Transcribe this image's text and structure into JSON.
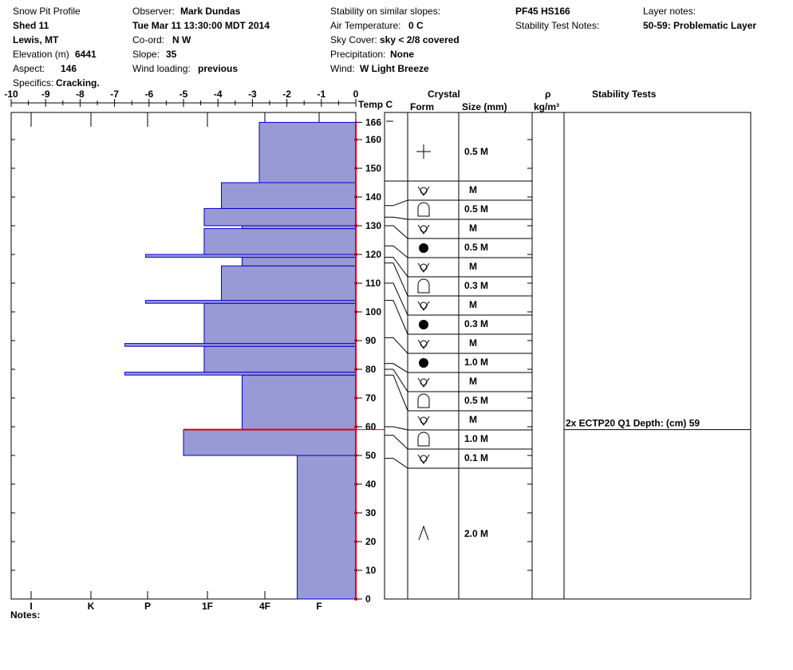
{
  "header": {
    "col1": {
      "title": "Snow Pit Profile",
      "location": "Shed 11",
      "region": "Lewis, MT",
      "elevation_label": "Elevation (m)",
      "elevation_value": "6441",
      "aspect_label": "Aspect:",
      "aspect_value": "146",
      "specifics_label": "Specifics:",
      "specifics_value": "Cracking."
    },
    "col2": {
      "observer_label": "Observer:",
      "observer_value": "Mark Dundas",
      "datetime": "Tue Mar 11 13:30:00 MDT 2014",
      "coord_label": "Co-ord:",
      "coord_value": "N  W",
      "slope_label": "Slope:",
      "slope_value": "35",
      "wind_loading_label": "Wind loading:",
      "wind_loading_value": "previous"
    },
    "col3": {
      "stability_label": "Stability on similar slopes:",
      "air_temp_label": "Air Temperature:",
      "air_temp_value": "0 C",
      "sky_label": "Sky Cover:",
      "sky_value": "sky < 2/8 covered",
      "precip_label": "Precipitation:",
      "precip_value": "None",
      "wind_label": "Wind:",
      "wind_value": "W Light Breeze"
    },
    "col4": {
      "pit_code": "PF45 HS166",
      "stability_notes_label": "Stability Test Notes:"
    },
    "col5": {
      "layer_notes_label": "Layer notes:",
      "layer_notes_value": "50-59: Problematic Layer"
    }
  },
  "footer": {
    "notes_label": "Notes:"
  },
  "chart_data": {
    "type": "snow_pit_profile",
    "temp_axis": {
      "ticks": [
        -10,
        -9,
        -8,
        -7,
        -6,
        -5,
        -4,
        -3,
        -2,
        -1,
        0
      ],
      "range": [
        -10,
        0
      ],
      "label": "Temp C"
    },
    "height_axis": {
      "ticks": [
        0,
        10,
        20,
        30,
        40,
        50,
        60,
        70,
        80,
        90,
        100,
        110,
        120,
        130,
        140,
        150,
        160,
        166
      ],
      "range": [
        0,
        166
      ],
      "units": "cm"
    },
    "hardness_axis": {
      "labels": [
        "I",
        "K",
        "P",
        "1F",
        "4F",
        "F"
      ]
    },
    "column_headers": {
      "crystal": "Crystal",
      "form": "Form",
      "size": "Size (mm)",
      "rho": "ρ",
      "rho_units": "kg/m³",
      "stability": "Stability Tests"
    },
    "hardness_profile": [
      {
        "bottom": 0,
        "top": 50,
        "hardness_temp_units": -1.7
      },
      {
        "bottom": 50,
        "top": 59,
        "hardness_temp_units": -5.0
      },
      {
        "bottom": 59,
        "top": 78,
        "hardness_temp_units": -3.3
      },
      {
        "bottom": 78,
        "top": 79,
        "hardness_temp_units": -6.7
      },
      {
        "bottom": 79,
        "top": 88,
        "hardness_temp_units": -4.4
      },
      {
        "bottom": 88,
        "top": 89,
        "hardness_temp_units": -6.7
      },
      {
        "bottom": 89,
        "top": 103,
        "hardness_temp_units": -4.4
      },
      {
        "bottom": 103,
        "top": 104,
        "hardness_temp_units": -6.1
      },
      {
        "bottom": 104,
        "top": 116,
        "hardness_temp_units": -3.9
      },
      {
        "bottom": 116,
        "top": 119,
        "hardness_temp_units": -3.3
      },
      {
        "bottom": 119,
        "top": 120,
        "hardness_temp_units": -6.1
      },
      {
        "bottom": 120,
        "top": 129,
        "hardness_temp_units": -4.4
      },
      {
        "bottom": 129,
        "top": 130,
        "hardness_temp_units": -3.3
      },
      {
        "bottom": 130,
        "top": 136,
        "hardness_temp_units": -4.4
      },
      {
        "bottom": 136,
        "top": 145,
        "hardness_temp_units": -3.9
      },
      {
        "bottom": 145,
        "top": 166,
        "hardness_temp_units": -2.8
      }
    ],
    "temperature_profile": [
      {
        "height": 0,
        "temp": 0
      },
      {
        "height": 10,
        "temp": 0
      },
      {
        "height": 20,
        "temp": 0
      },
      {
        "height": 30,
        "temp": 0
      },
      {
        "height": 40,
        "temp": 0
      },
      {
        "height": 50,
        "temp": 0
      },
      {
        "height": 60,
        "temp": 0
      },
      {
        "height": 70,
        "temp": 0
      },
      {
        "height": 80,
        "temp": 0
      },
      {
        "height": 90,
        "temp": 0
      },
      {
        "height": 100,
        "temp": 0
      },
      {
        "height": 110,
        "temp": 0
      },
      {
        "height": 120,
        "temp": 0
      },
      {
        "height": 130,
        "temp": 0
      },
      {
        "height": 140,
        "temp": 0
      },
      {
        "height": 150,
        "temp": 0
      },
      {
        "height": 160,
        "temp": 0
      }
    ],
    "problem_layer_height": 59,
    "layers": [
      {
        "bottom": 145,
        "top": 166,
        "form": "plus",
        "size": "0.5 M"
      },
      {
        "bottom": 137,
        "top": 145,
        "form": "facet-round",
        "size": "M"
      },
      {
        "bottom": 133,
        "top": 137,
        "form": "depth-hoar",
        "size": "0.5 M"
      },
      {
        "bottom": 130,
        "top": 133,
        "form": "facet-round",
        "size": "M"
      },
      {
        "bottom": 123,
        "top": 130,
        "form": "melt-form",
        "size": "0.5 M"
      },
      {
        "bottom": 119,
        "top": 123,
        "form": "facet-round",
        "size": "M"
      },
      {
        "bottom": 117,
        "top": 119,
        "form": "depth-hoar",
        "size": "0.3 M"
      },
      {
        "bottom": 110,
        "top": 117,
        "form": "facet-round",
        "size": "M"
      },
      {
        "bottom": 104,
        "top": 110,
        "form": "melt-form",
        "size": "0.3 M"
      },
      {
        "bottom": 91,
        "top": 104,
        "form": "facet-round",
        "size": "M"
      },
      {
        "bottom": 82,
        "top": 91,
        "form": "melt-form",
        "size": "1.0 M"
      },
      {
        "bottom": 80,
        "top": 82,
        "form": "facet-round",
        "size": "M"
      },
      {
        "bottom": 78,
        "top": 80,
        "form": "depth-hoar",
        "size": "0.5 M"
      },
      {
        "bottom": 60,
        "top": 78,
        "form": "facet-round",
        "size": "M"
      },
      {
        "bottom": 57,
        "top": 60,
        "form": "depth-hoar",
        "size": "1.0 M"
      },
      {
        "bottom": 49,
        "top": 57,
        "form": "facet-round",
        "size": "0.1 M"
      },
      {
        "bottom": 0,
        "top": 49,
        "form": "surface-hoar",
        "size": "2.0 M"
      }
    ],
    "stability_tests": [
      {
        "height": 59,
        "text": "2x ECTP20 Q1 Depth: (cm) 59"
      }
    ]
  },
  "colors": {
    "hardness_fill": "#9999d6",
    "hardness_stroke": "#0000cc",
    "temperature": "#dd0000",
    "grid": "#000000"
  }
}
